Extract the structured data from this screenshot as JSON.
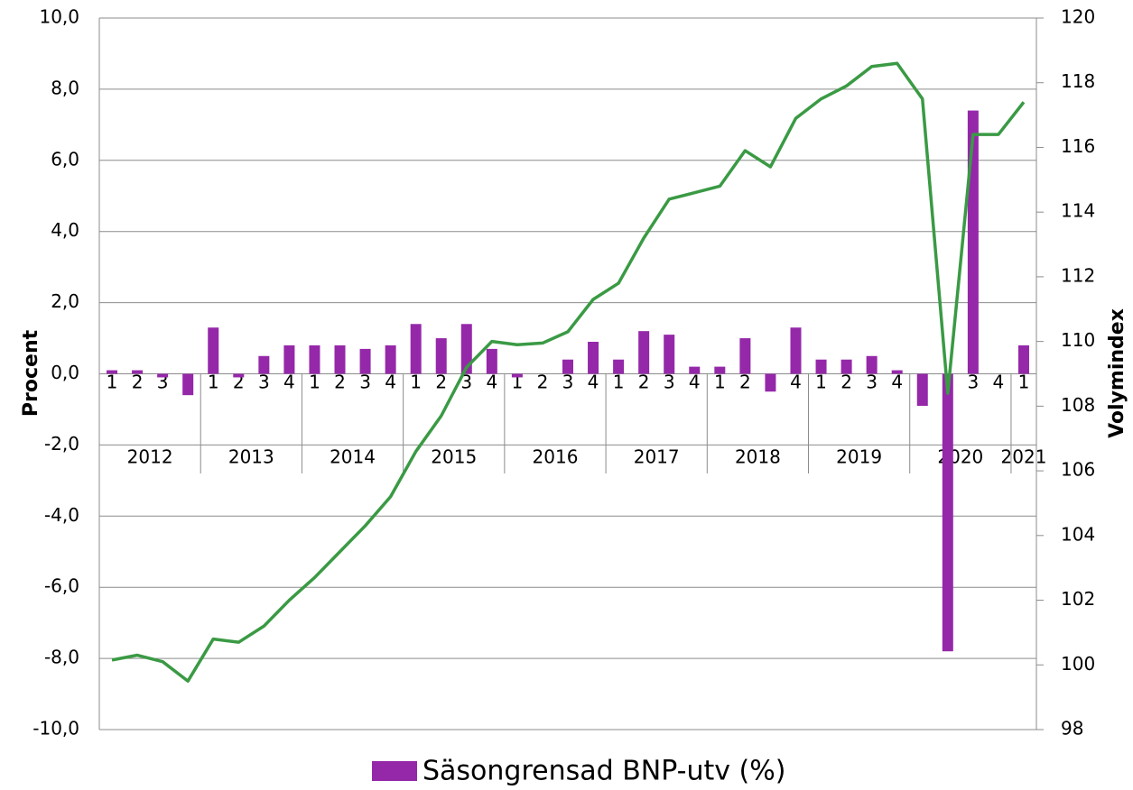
{
  "chart_data": {
    "type": "combo",
    "y_label": "Procent",
    "y2_label": "Volymindex",
    "categories": [
      "1",
      "2",
      "3",
      "4",
      "1",
      "2",
      "3",
      "4",
      "1",
      "2",
      "3",
      "4",
      "1",
      "2",
      "3",
      "4",
      "1",
      "2",
      "3",
      "4",
      "1",
      "2",
      "3",
      "4",
      "1",
      "2",
      "3",
      "4",
      "1",
      "2",
      "3",
      "4",
      "1",
      "2",
      "3",
      "4",
      "1"
    ],
    "category_groups": [
      "2012",
      "2013",
      "2014",
      "2015",
      "2016",
      "2017",
      "2018",
      "2019",
      "2020",
      "2021"
    ],
    "series": [
      {
        "name": "Säsongrensad BNP-utv (%)",
        "type": "bar",
        "color": "#9528a9",
        "values": [
          0.1,
          0.1,
          -0.1,
          -0.6,
          1.3,
          -0.1,
          0.5,
          0.8,
          0.8,
          0.8,
          0.7,
          0.8,
          1.4,
          1.0,
          1.4,
          0.7,
          -0.1,
          0,
          0.4,
          0.9,
          0.4,
          1.2,
          1.1,
          0.2,
          0.2,
          1.0,
          -0.5,
          1.3,
          0.4,
          0.4,
          0.5,
          0.1,
          -0.9,
          -7.8,
          7.4,
          0,
          0.8
        ]
      },
      {
        "type": "line",
        "axis": "y2",
        "color": "#3a9a44",
        "values": [
          100.15,
          100.3,
          100.1,
          99.5,
          100.8,
          100.7,
          101.2,
          102.0,
          102.7,
          103.5,
          104.3,
          105.2,
          106.6,
          107.7,
          109.2,
          110.0,
          109.9,
          109.95,
          110.3,
          111.3,
          111.8,
          113.2,
          114.4,
          114.6,
          114.8,
          115.9,
          115.4,
          116.9,
          117.5,
          117.9,
          118.5,
          118.6,
          117.5,
          108.4,
          116.4,
          116.4,
          117.4
        ]
      }
    ],
    "ylim": [
      -10,
      10
    ],
    "yticks": [
      {
        "value": -10,
        "label": "-10,0"
      },
      {
        "value": -8,
        "label": "-8,0"
      },
      {
        "value": -6,
        "label": "-6,0"
      },
      {
        "value": -4,
        "label": "-4,0"
      },
      {
        "value": -2,
        "label": "-2,0"
      },
      {
        "value": 0,
        "label": "0,0"
      },
      {
        "value": 2,
        "label": "2,0"
      },
      {
        "value": 4,
        "label": "4,0"
      },
      {
        "value": 6,
        "label": "6,0"
      },
      {
        "value": 8,
        "label": "8,0"
      },
      {
        "value": 10,
        "label": "10,0"
      }
    ],
    "y2lim": [
      98,
      120
    ],
    "y2ticks": [
      98,
      100,
      102,
      104,
      106,
      108,
      110,
      112,
      114,
      116,
      118,
      120
    ],
    "grid": true,
    "legend": "bottom"
  }
}
